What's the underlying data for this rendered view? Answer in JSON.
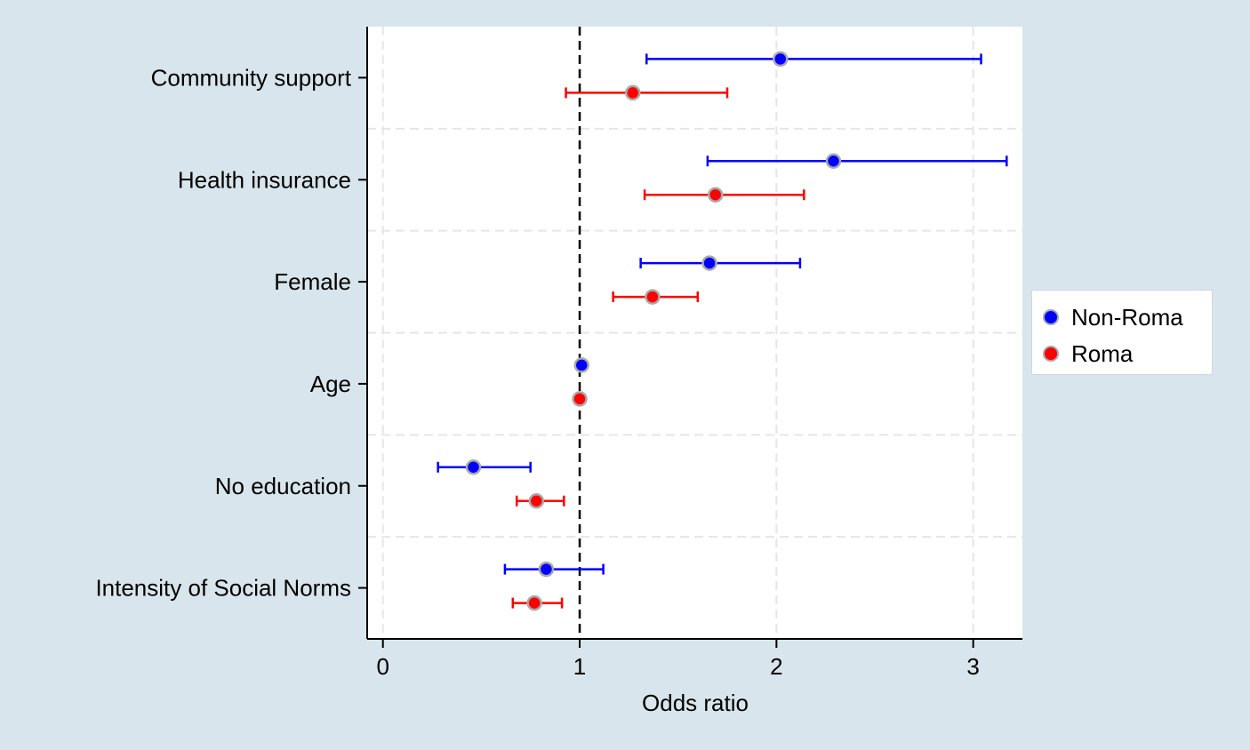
{
  "chart_data": {
    "type": "scatter",
    "xlabel": "Odds ratio",
    "ylabel": "",
    "xlim": [
      -0.08,
      3.25
    ],
    "xticks": [
      0,
      1,
      2,
      3
    ],
    "xtick_labels": [
      "0",
      "1",
      "2",
      "3"
    ],
    "reference_line": 1,
    "grid": true,
    "legend_position": "right",
    "categories": [
      "Community support",
      "Health insurance",
      "Female",
      "Age",
      "No education",
      "Intensity of Social Norms"
    ],
    "series": [
      {
        "name": "Non-Roma",
        "color": "#0000ff",
        "estimates": [
          2.02,
          2.29,
          1.66,
          1.01,
          0.46,
          0.83
        ],
        "ci_low": [
          1.34,
          1.65,
          1.31,
          null,
          0.28,
          0.62
        ],
        "ci_high": [
          3.04,
          3.17,
          2.12,
          null,
          0.75,
          1.12
        ]
      },
      {
        "name": "Roma",
        "color": "#ff0000",
        "estimates": [
          1.27,
          1.69,
          1.37,
          1.0,
          0.78,
          0.77
        ],
        "ci_low": [
          0.93,
          1.33,
          1.17,
          null,
          0.68,
          0.66
        ],
        "ci_high": [
          1.75,
          2.14,
          1.6,
          null,
          0.92,
          0.91
        ]
      }
    ]
  }
}
